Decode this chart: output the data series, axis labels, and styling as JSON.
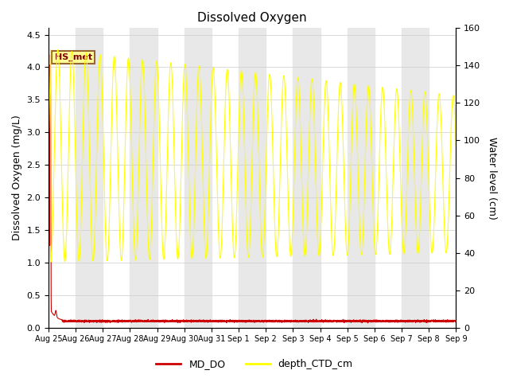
{
  "title": "Dissolved Oxygen",
  "ylabel_left": "Dissolved Oxygen (mg/L)",
  "ylabel_right": "Water level (cm)",
  "ylim_left": [
    0,
    4.6
  ],
  "ylim_right": [
    0,
    160
  ],
  "yticks_left": [
    0.0,
    0.5,
    1.0,
    1.5,
    2.0,
    2.5,
    3.0,
    3.5,
    4.0,
    4.5
  ],
  "yticks_right": [
    0,
    20,
    40,
    60,
    80,
    100,
    120,
    140,
    160
  ],
  "legend_label_red": "MD_DO",
  "legend_label_yellow": "depth_CTD_cm",
  "annotation_text": "HS_met",
  "line_color_red": "#cc0000",
  "line_color_yellow": "#ffff00",
  "background_color": "#ffffff",
  "stripe_color": "#e8e8e8",
  "num_days": 15,
  "tick_labels": [
    "Aug 25",
    "Aug 26",
    "Aug 27",
    "Aug 28",
    "Aug 29",
    "Aug 30",
    "Aug 31",
    "Sep 1",
    "Sep 2",
    "Sep 3",
    "Sep 4",
    "Sep 5",
    "Sep 6",
    "Sep 7",
    "Sep 8",
    "Sep 9"
  ]
}
